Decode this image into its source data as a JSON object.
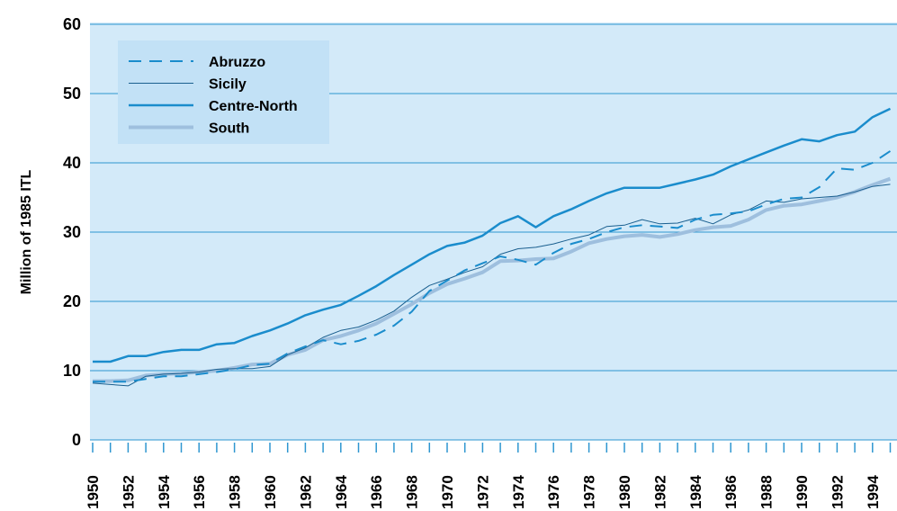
{
  "chart_data": {
    "type": "line",
    "y_label": "Million of 1985 ITL",
    "categories": [
      "1950",
      null,
      "1952",
      null,
      "1954",
      null,
      "1956",
      null,
      "1958",
      null,
      "1960",
      null,
      "1962",
      null,
      "1964",
      null,
      "1966",
      null,
      "1968",
      null,
      "1970",
      null,
      "1972",
      null,
      "1974",
      null,
      "1976",
      null,
      "1978",
      null,
      "1980",
      null,
      "1982",
      null,
      "1984",
      null,
      "1986",
      null,
      "1988",
      null,
      "1990",
      null,
      "1992",
      null,
      "1994",
      null
    ],
    "series": [
      {
        "name": "Abruzzo",
        "color": "#1a8ccc",
        "style": "dashed",
        "width": 2,
        "values": [
          8.4,
          8.4,
          8.4,
          8.8,
          9.2,
          9.2,
          9.5,
          9.8,
          10.2,
          10.8,
          11.0,
          12.5,
          13.5,
          14.4,
          13.8,
          14.3,
          15.2,
          16.5,
          18.5,
          21.5,
          23.0,
          24.5,
          25.5,
          26.5,
          26.0,
          25.3,
          27.0,
          28.3,
          29.0,
          30.0,
          30.7,
          31.0,
          30.8,
          30.6,
          31.8,
          32.5,
          32.7,
          33.0,
          34.0,
          34.8,
          35.0,
          36.5,
          39.2,
          39.0,
          40.0,
          41.7
        ]
      },
      {
        "name": "Sicily",
        "color": "#1a5f8f",
        "style": "solid",
        "width": 1,
        "values": [
          8.2,
          8.0,
          7.8,
          9.2,
          9.5,
          9.6,
          9.8,
          10.2,
          10.3,
          10.3,
          10.6,
          12.3,
          13.3,
          14.8,
          15.8,
          16.3,
          17.3,
          18.6,
          20.6,
          22.3,
          23.2,
          24.2,
          25.0,
          26.8,
          27.6,
          27.8,
          28.3,
          29.0,
          29.6,
          30.8,
          31.0,
          31.8,
          31.2,
          31.3,
          32.0,
          31.2,
          32.5,
          33.2,
          34.5,
          34.3,
          34.8,
          35.0,
          35.2,
          35.8,
          36.6,
          36.9
        ]
      },
      {
        "name": "Centre-North",
        "color": "#1a8ccc",
        "style": "solid",
        "width": 2.5,
        "values": [
          11.3,
          11.3,
          12.1,
          12.1,
          12.7,
          13.0,
          13.0,
          13.8,
          14.0,
          15.0,
          15.8,
          16.8,
          18.0,
          18.8,
          19.5,
          20.8,
          22.2,
          23.8,
          25.3,
          26.8,
          28.0,
          28.5,
          29.5,
          31.3,
          32.3,
          30.7,
          32.3,
          33.3,
          34.5,
          35.6,
          36.4,
          36.4,
          36.4,
          37.0,
          37.6,
          38.3,
          39.5,
          40.5,
          41.5,
          42.5,
          43.4,
          43.1,
          44.0,
          44.5,
          46.6,
          47.8
        ]
      },
      {
        "name": "South",
        "color": "#9ebfde",
        "style": "solid",
        "width": 4,
        "values": [
          8.5,
          8.5,
          8.6,
          9.3,
          9.5,
          9.6,
          9.8,
          10.0,
          10.4,
          10.9,
          11.0,
          12.3,
          13.0,
          14.4,
          15.0,
          15.8,
          16.8,
          18.2,
          19.6,
          21.2,
          22.5,
          23.3,
          24.2,
          25.8,
          25.9,
          26.1,
          26.2,
          27.2,
          28.4,
          29.0,
          29.4,
          29.6,
          29.3,
          29.7,
          30.3,
          30.7,
          30.9,
          31.8,
          33.2,
          33.8,
          34.0,
          34.5,
          35.0,
          35.8,
          36.8,
          37.7
        ]
      }
    ],
    "ylim": [
      0,
      60
    ],
    "yticks": [
      0,
      10,
      20,
      30,
      40,
      50,
      60
    ],
    "grid": true,
    "background": "#d3eaf9",
    "grid_color": "#2e96d0",
    "legend_background": "#c2e1f6"
  }
}
